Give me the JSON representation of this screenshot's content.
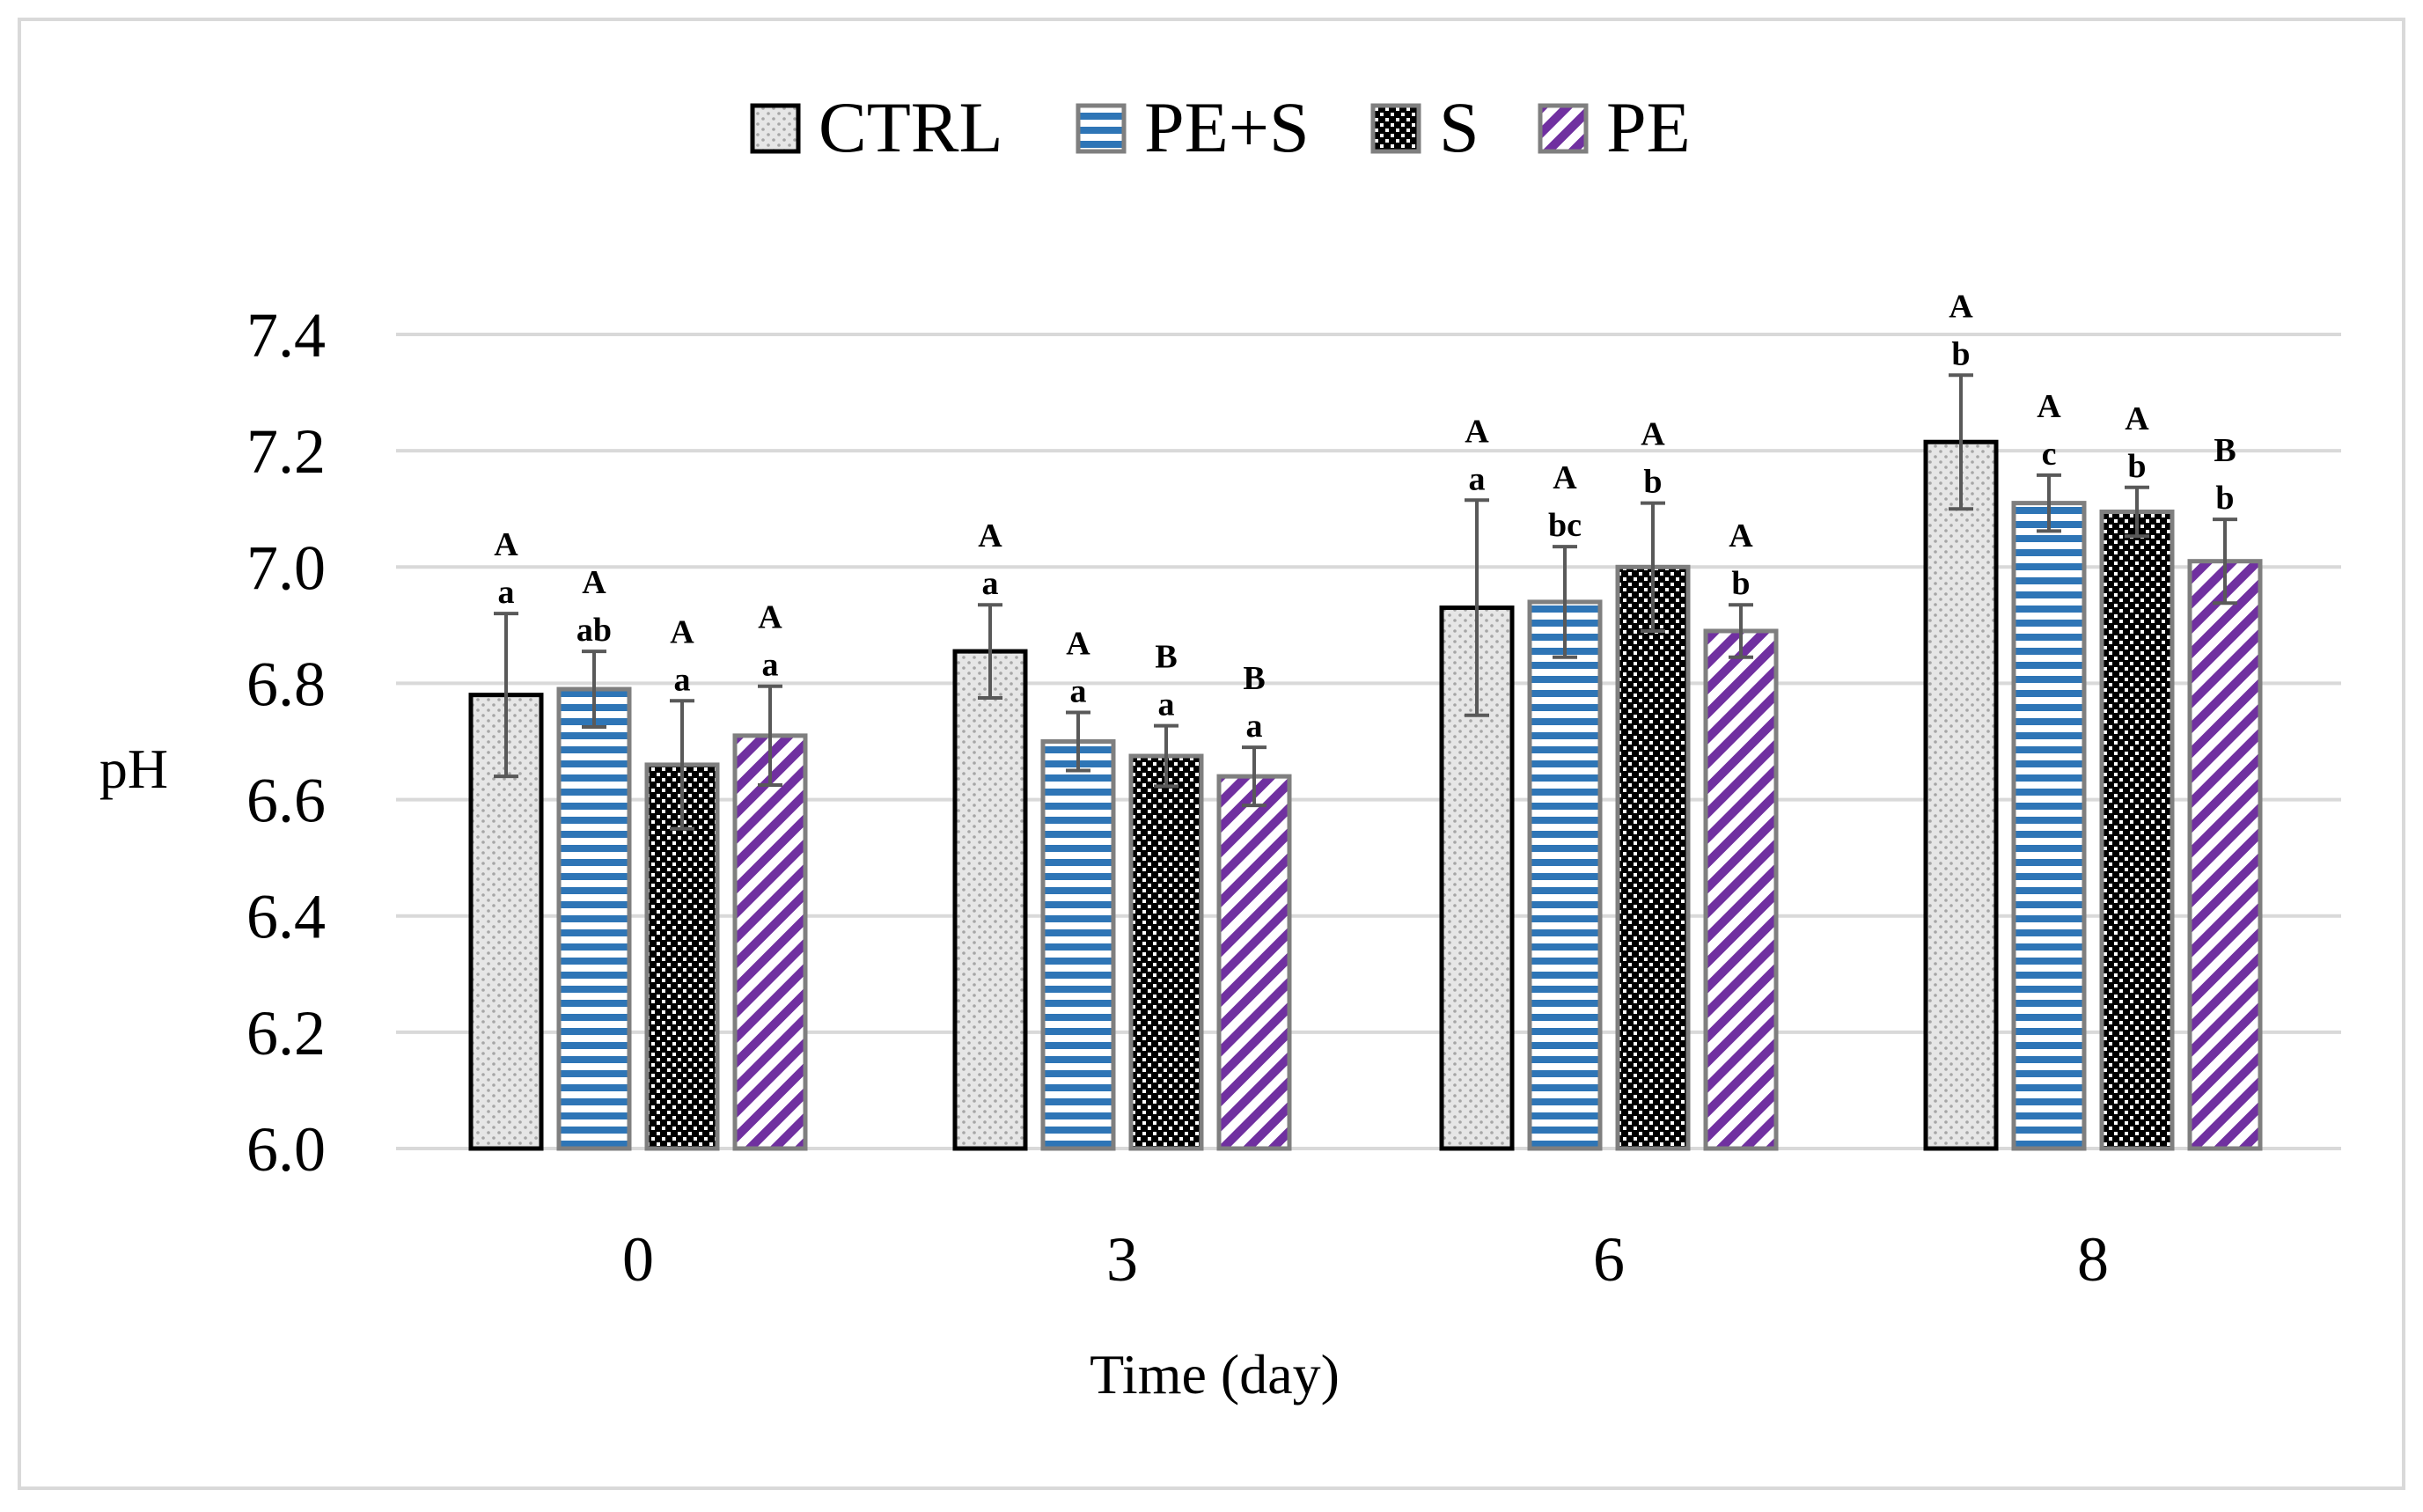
{
  "colors": {
    "ctrl_fill": "#e6e6e6",
    "ctrl_dots": "#a6a6a6",
    "pes_fill": "#ffffff",
    "pes_stripe": "#2e75b6",
    "s_fill": "#000000",
    "s_dots": "#ffffff",
    "pe_fill": "#ffffff",
    "pe_stripe": "#7030a0",
    "gridline": "#d9d9d9",
    "error_bar": "#595959",
    "frame": "#d9d9d9"
  },
  "chart_data": {
    "type": "bar",
    "xlabel": "Time (day)",
    "ylabel": "pH",
    "ylim": [
      6.0,
      7.4
    ],
    "yticks": [
      "6.0",
      "6.2",
      "6.4",
      "6.6",
      "6.8",
      "7.0",
      "7.2",
      "7.4"
    ],
    "grid": true,
    "legend_position": "top-center",
    "categories": [
      "0",
      "3",
      "6",
      "8"
    ],
    "series": [
      {
        "name": "CTRL",
        "pattern": "dots-gray",
        "values": [
          6.78,
          6.855,
          6.93,
          7.215
        ],
        "errors": [
          0.14,
          0.08,
          0.185,
          0.115
        ],
        "sig_upper": [
          "A",
          "A",
          "A",
          "A"
        ],
        "sig_lower": [
          "a",
          "a",
          "a",
          "b"
        ]
      },
      {
        "name": "PE+S",
        "pattern": "horizontal-stripes-blue",
        "values": [
          6.79,
          6.7,
          6.94,
          7.11
        ],
        "errors": [
          0.065,
          0.05,
          0.095,
          0.048
        ],
        "sig_upper": [
          "A",
          "A",
          "A",
          "A"
        ],
        "sig_lower": [
          "ab",
          "a",
          "bc",
          "c"
        ]
      },
      {
        "name": "S",
        "pattern": "dots-black",
        "values": [
          6.66,
          6.675,
          7.0,
          7.095
        ],
        "errors": [
          0.11,
          0.052,
          0.11,
          0.042
        ],
        "sig_upper": [
          "A",
          "B",
          "A",
          "A"
        ],
        "sig_lower": [
          "a",
          "a",
          "b",
          "b"
        ]
      },
      {
        "name": "PE",
        "pattern": "diagonal-stripes-purple",
        "values": [
          6.71,
          6.64,
          6.89,
          7.01
        ],
        "errors": [
          0.085,
          0.05,
          0.045,
          0.072
        ],
        "sig_upper": [
          "A",
          "B",
          "A",
          "B"
        ],
        "sig_lower": [
          "a",
          "a",
          "b",
          "b"
        ]
      }
    ]
  }
}
